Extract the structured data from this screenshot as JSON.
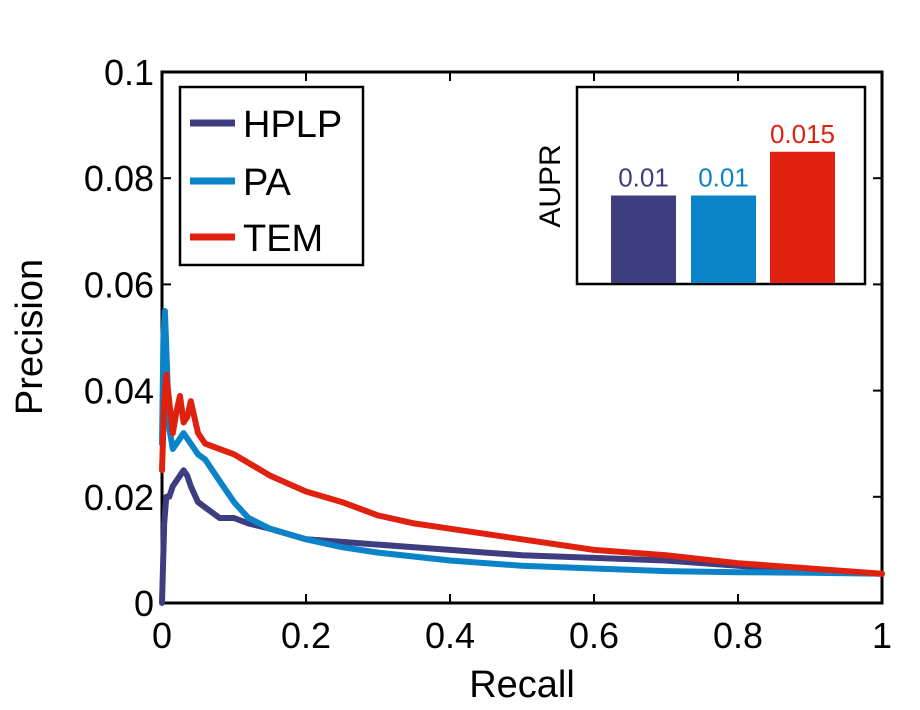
{
  "chart_data": [
    {
      "type": "line",
      "title": "",
      "xlabel": "Recall",
      "ylabel": "Precision",
      "xlim": [
        0,
        1
      ],
      "ylim": [
        0,
        0.1
      ],
      "xticks": [
        "0",
        "0.2",
        "0.4",
        "0.6",
        "0.8",
        "1"
      ],
      "yticks": [
        "0",
        "0.02",
        "0.04",
        "0.06",
        "0.08",
        "0.1"
      ],
      "legend_position": "top-left",
      "series": [
        {
          "name": "HPLP",
          "color": "#3d3d80",
          "x": [
            0.0,
            0.003,
            0.006,
            0.01,
            0.015,
            0.02,
            0.025,
            0.03,
            0.035,
            0.04,
            0.05,
            0.06,
            0.07,
            0.08,
            0.1,
            0.12,
            0.15,
            0.2,
            0.25,
            0.3,
            0.35,
            0.4,
            0.45,
            0.5,
            0.6,
            0.7,
            0.8,
            0.9,
            1.0
          ],
          "y": [
            0.0,
            0.015,
            0.02,
            0.02,
            0.022,
            0.023,
            0.024,
            0.025,
            0.024,
            0.022,
            0.019,
            0.018,
            0.017,
            0.016,
            0.016,
            0.015,
            0.014,
            0.012,
            0.0115,
            0.011,
            0.0105,
            0.01,
            0.0095,
            0.009,
            0.0085,
            0.008,
            0.007,
            0.006,
            0.0055
          ]
        },
        {
          "name": "PA",
          "color": "#0a83c8",
          "x": [
            0.0,
            0.002,
            0.004,
            0.006,
            0.008,
            0.01,
            0.015,
            0.02,
            0.025,
            0.03,
            0.035,
            0.04,
            0.05,
            0.06,
            0.07,
            0.08,
            0.1,
            0.12,
            0.15,
            0.2,
            0.25,
            0.3,
            0.4,
            0.5,
            0.6,
            0.7,
            0.8,
            0.9,
            1.0
          ],
          "y": [
            0.03,
            0.05,
            0.055,
            0.048,
            0.04,
            0.033,
            0.029,
            0.03,
            0.031,
            0.032,
            0.031,
            0.03,
            0.028,
            0.027,
            0.025,
            0.023,
            0.019,
            0.016,
            0.014,
            0.012,
            0.0105,
            0.0095,
            0.008,
            0.007,
            0.0065,
            0.006,
            0.0058,
            0.0057,
            0.0055
          ]
        },
        {
          "name": "TEM",
          "color": "#e0210f",
          "x": [
            0.0,
            0.003,
            0.006,
            0.01,
            0.015,
            0.02,
            0.025,
            0.03,
            0.035,
            0.04,
            0.05,
            0.06,
            0.08,
            0.1,
            0.15,
            0.2,
            0.25,
            0.3,
            0.35,
            0.4,
            0.5,
            0.6,
            0.7,
            0.8,
            0.9,
            1.0
          ],
          "y": [
            0.025,
            0.038,
            0.043,
            0.038,
            0.032,
            0.036,
            0.039,
            0.034,
            0.035,
            0.038,
            0.032,
            0.03,
            0.029,
            0.028,
            0.024,
            0.021,
            0.019,
            0.0165,
            0.015,
            0.014,
            0.012,
            0.01,
            0.009,
            0.0075,
            0.0065,
            0.0055
          ]
        }
      ]
    },
    {
      "type": "bar",
      "title": "",
      "xlabel": "",
      "ylabel": "AUPR",
      "categories": [
        "HPLP",
        "PA",
        "TEM"
      ],
      "values": [
        0.01,
        0.01,
        0.015
      ],
      "value_labels": [
        "0.01",
        "0.01",
        "0.015"
      ],
      "colors": [
        "#3d3d80",
        "#0a83c8",
        "#e0210f"
      ],
      "ylim": [
        0,
        0.016
      ]
    }
  ]
}
